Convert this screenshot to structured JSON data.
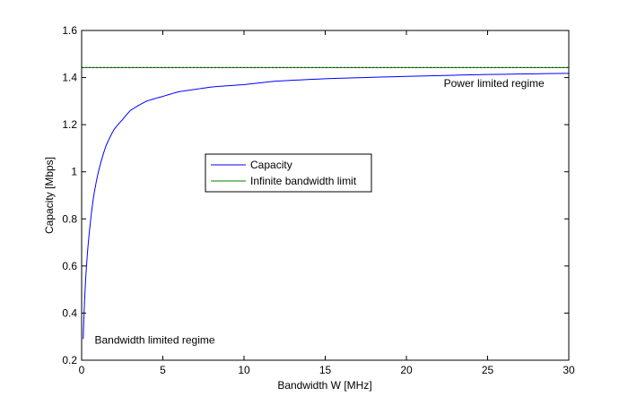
{
  "chart_data": {
    "type": "line",
    "title": "",
    "xlabel": "Bandwidth W [MHz]",
    "ylabel": "Capacity [Mbps]",
    "xlim": [
      0,
      30
    ],
    "ylim": [
      0.2,
      1.6
    ],
    "xticks": [
      0,
      5,
      10,
      15,
      20,
      25,
      30
    ],
    "yticks": [
      0.2,
      0.4,
      0.6,
      0.8,
      1,
      1.2,
      1.4,
      1.6
    ],
    "xtick_labels": [
      "0",
      "5",
      "10",
      "15",
      "20",
      "25",
      "30"
    ],
    "ytick_labels": [
      "0.2",
      "0.4",
      "0.6",
      "0.8",
      "1",
      "1.2",
      "1.4",
      "1.6"
    ],
    "grid": false,
    "legend_position": "center-left",
    "series": [
      {
        "name": "Capacity",
        "color": "#0000ff",
        "x": [
          0.1,
          0.2,
          0.3,
          0.5,
          0.75,
          1,
          1.5,
          2,
          2.5,
          3,
          4,
          5,
          6,
          7,
          8,
          10,
          12,
          15,
          20,
          25,
          30
        ],
        "y": [
          0.29,
          0.48,
          0.6,
          0.76,
          0.9,
          0.99,
          1.11,
          1.18,
          1.22,
          1.26,
          1.3,
          1.32,
          1.34,
          1.35,
          1.36,
          1.37,
          1.385,
          1.395,
          1.405,
          1.413,
          1.418
        ]
      },
      {
        "name": "Infinite bandwidth limit",
        "color": "#008000",
        "x": [
          0,
          30
        ],
        "y": [
          1.4427,
          1.4427
        ]
      }
    ],
    "annotations": [
      {
        "text": "Power limited regime",
        "x": 22.3,
        "y": 1.36
      },
      {
        "text": "Bandwidth limited regime",
        "x": 0.8,
        "y": 0.27
      }
    ]
  }
}
